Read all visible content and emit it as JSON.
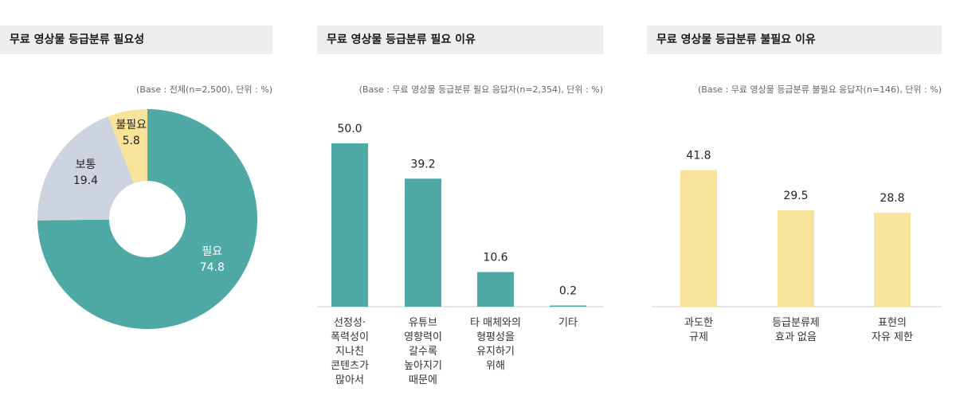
{
  "colors": {
    "teal": "#4ea9a4",
    "gray": "#cdd3df",
    "yellow": "#f8e39b",
    "axis": "#cccccc"
  },
  "chart_data": [
    {
      "type": "pie",
      "title": "무료 영상물 등급분류 필요성",
      "base_note": "(Base : 전체(n=2,500), 단위 : %)",
      "slices": [
        {
          "label": "필요",
          "value": 74.8,
          "color": "#4ea9a4"
        },
        {
          "label": "보통",
          "value": 19.4,
          "color": "#cdd3df"
        },
        {
          "label": "불필요",
          "value": 5.8,
          "color": "#f8e39b"
        }
      ]
    },
    {
      "type": "bar",
      "title": "무료 영상물 등급분류 필요 이유",
      "base_note": "(Base : 무료 영상물 등급분류 필요 응답자(n=2,354), 단위 : %)",
      "color": "#4ea9a4",
      "ylim": [
        0,
        50
      ],
      "categories": [
        [
          "선정성·",
          "폭력성이",
          "지나친",
          "콘텐츠가",
          "많아서"
        ],
        [
          "유튜브",
          "영향력이",
          "갈수록",
          "높아지기",
          "때문에"
        ],
        [
          "타 매체와의",
          "형평성을",
          "유지하기",
          "위해"
        ],
        [
          "기타"
        ]
      ],
      "values": [
        50.0,
        39.2,
        10.6,
        0.2
      ],
      "value_labels": [
        "50.0",
        "39.2",
        "10.6",
        "0.2"
      ]
    },
    {
      "type": "bar",
      "title": "무료 영상물 등급분류 불필요 이유",
      "base_note": "(Base : 무료 영상물 등급분류 불필요 응답자(n=146), 단위 : %)",
      "color": "#f8e39b",
      "ylim": [
        0,
        50
      ],
      "categories": [
        [
          "과도한",
          "규제"
        ],
        [
          "등급분류제",
          "효과 없음"
        ],
        [
          "표현의",
          "자유 제한"
        ]
      ],
      "values": [
        41.8,
        29.5,
        28.8
      ],
      "value_labels": [
        "41.8",
        "29.5",
        "28.8"
      ]
    }
  ]
}
